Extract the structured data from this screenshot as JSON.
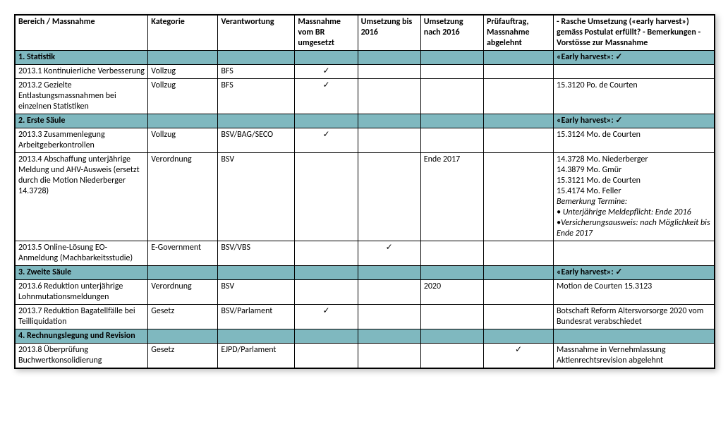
{
  "columns": [
    "Bereich /\nMassnahme",
    "Kategorie",
    "Verantwortung",
    "Massnahme vom BR umgesetzt",
    "Umsetzung bis 2016",
    "Umsetzung nach 2016",
    "Prüfauftrag, Massnahme abgelehnt",
    "- Rasche Umsetzung («early harvest») gemäss Postulat erfüllt?\n- Bemerkungen\n- Vorstösse zur Massnahme"
  ],
  "check": "✓",
  "sections": [
    {
      "label": "1. Statistik",
      "remark": "«Early harvest»: ✓"
    },
    {
      "label": "2. Erste Säule",
      "remark": "«Early harvest»: ✓"
    },
    {
      "label": "3. Zweite Säule",
      "remark": "«Early harvest»: ✓"
    },
    {
      "label": "4. Rechnungslegung und Revision",
      "remark": ""
    }
  ],
  "rows": {
    "r1": {
      "m": "2013.1 Kontinuierliche Verbesserung",
      "k": "Vollzug",
      "v": "BFS",
      "c1": true,
      "rem": ""
    },
    "r2": {
      "m": "2013.2 Gezielte Entlastungsmassnahmen bei einzelnen Statistiken",
      "k": "Vollzug",
      "v": "BFS",
      "c1": true,
      "rem": "15.3120 Po. de Courten"
    },
    "r3": {
      "m": "2013.3 Zusammenlegung Arbeitgeberkontrollen",
      "k": "Vollzug",
      "v": "BSV/BAG/SECO",
      "c1": true,
      "rem": "15.3124 Mo. de Courten"
    },
    "r4": {
      "m": "2013.4 Abschaffung unterjährige Meldung und AHV-Ausweis (ersetzt durch die Motion Niederberger 14.3728)",
      "k": "Verordnung",
      "v": "BSV",
      "u3": "Ende 2017",
      "rem_lines": [
        "14.3728 Mo. Niederberger",
        "14.3879 Mo. Gmür",
        "15.3121 Mo. de Courten",
        "15.4174 Mo. Feller"
      ],
      "rem_em": [
        "Bemerkung Termine:",
        "• Unterjährige Meldepflicht: Ende 2016",
        "•Versicherungsausweis: nach Möglichkeit bis Ende 2017"
      ]
    },
    "r5": {
      "m": "2013.5 Online-Lösung EO-Anmeldung (Machbarkeitsstudie)",
      "k": "E-Government",
      "v": "BSV/VBS",
      "c2": true,
      "rem": ""
    },
    "r6": {
      "m": "2013.6 Reduktion unterjährige Lohnmutationsmeldungen",
      "k": "Verordnung",
      "v": "BSV",
      "u3": "2020",
      "rem": "Motion de Courten 15.3123"
    },
    "r7": {
      "m": "2013.7 Reduktion Bagatellfälle bei Teilliquidation",
      "k": "Gesetz",
      "v": "BSV/Parlament",
      "c1": true,
      "rem": "Botschaft Reform Altersvorsorge 2020 vom Bundesrat verabschiedet"
    },
    "r8": {
      "m": "2013.8 Überprüfung Buchwertkonsolidierung",
      "k": "Gesetz",
      "v": "EJPD/Parlament",
      "c4": true,
      "rem": "Massnahme in Vernehmlassung Aktienrechtsrevision abgelehnt"
    }
  },
  "colors": {
    "section_bg": "#7fb8bf",
    "border": "#000000",
    "text": "#000000",
    "bg": "#ffffff"
  }
}
